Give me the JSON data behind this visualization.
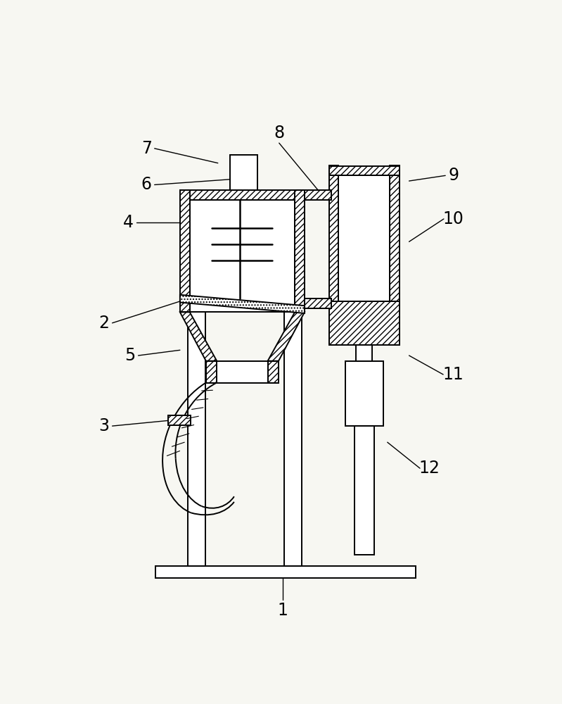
{
  "bg_color": "#f7f7f2",
  "line_color": "#000000",
  "label_fontsize": 17,
  "figsize": [
    7.99,
    10.0
  ],
  "dpi": 100
}
